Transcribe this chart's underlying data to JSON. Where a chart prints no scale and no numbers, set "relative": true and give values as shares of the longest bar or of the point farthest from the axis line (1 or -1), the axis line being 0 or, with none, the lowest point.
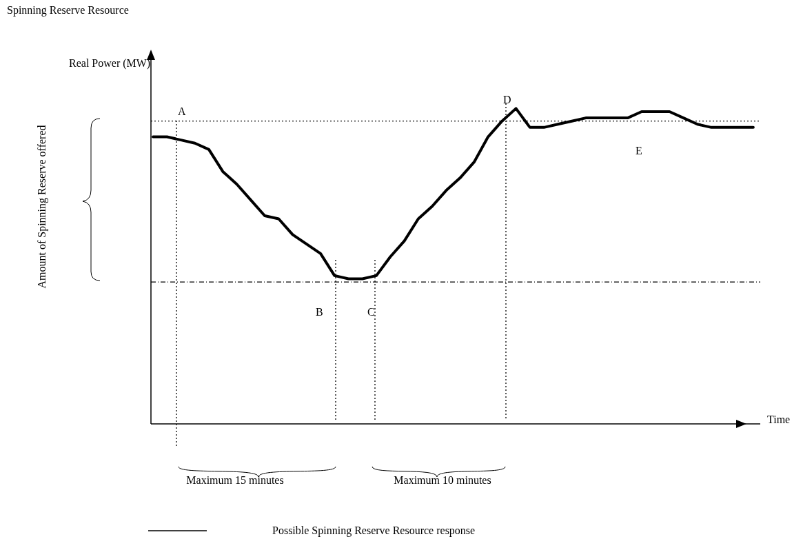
{
  "chart_data": {
    "type": "line",
    "relative": true,
    "title": "Spinning Reserve Resource",
    "ylabel": "Real Power (MW)",
    "xlabel": "Time",
    "categories": [
      null,
      null,
      null,
      null,
      null,
      null,
      null,
      null,
      null,
      null,
      null,
      null,
      null,
      null,
      null,
      null,
      null,
      null,
      null,
      null,
      null,
      null,
      null,
      null,
      null,
      null,
      null,
      null,
      null,
      null,
      null,
      null,
      null,
      null,
      null,
      null,
      null,
      null,
      null,
      null,
      null,
      null,
      null,
      null
    ],
    "series": [
      {
        "name": "Possible  Spinning Reserve Resource response",
        "color": "#000000",
        "values": [
          0.91,
          0.91,
          0.9,
          0.89,
          0.87,
          0.8,
          0.76,
          0.71,
          0.66,
          0.65,
          0.6,
          0.57,
          0.54,
          0.47,
          0.46,
          0.46,
          0.47,
          0.53,
          0.58,
          0.65,
          0.69,
          0.74,
          0.78,
          0.83,
          0.91,
          0.96,
          1.0,
          0.94,
          0.94,
          0.95,
          0.96,
          0.97,
          0.97,
          0.97,
          0.97,
          0.99,
          0.99,
          0.99,
          0.97,
          0.95,
          0.94,
          0.94,
          0.94,
          0.94
        ]
      }
    ],
    "ref_lines": [
      {
        "axis": "y",
        "value": 0.96,
        "color": "#000000",
        "line_style": "dotted"
      },
      {
        "axis": "y",
        "value": 0.45,
        "color": "#000000",
        "line_style": "dashed"
      }
    ],
    "annotations": [
      "A",
      "B",
      "C",
      "D",
      "E",
      "Amount of Spinning Reserve offered",
      "Maximum 15 minutes",
      "Maximum 10 minutes"
    ],
    "legend": "bottom",
    "grid": false,
    "marker": "none",
    "line_style": "solid"
  }
}
